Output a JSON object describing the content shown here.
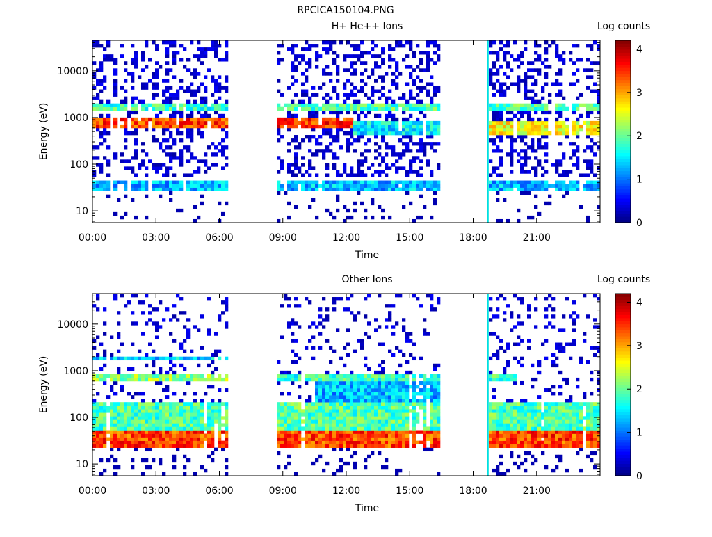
{
  "figure": {
    "title": "RPCICA150104.PNG"
  },
  "colormap": {
    "stops": [
      "#00007f",
      "#0000ff",
      "#007fff",
      "#00ffff",
      "#7fff7f",
      "#ffff00",
      "#ff7f00",
      "#ff0000",
      "#7f0000"
    ],
    "background": "#ffffff"
  },
  "chart_data": [
    {
      "type": "heatmap",
      "title": "H+ He++ Ions",
      "xlabel": "Time",
      "ylabel": "Energy (eV)",
      "x_range_hours": [
        0,
        24
      ],
      "x_ticks": [
        "00:00",
        "03:00",
        "06:00",
        "09:00",
        "12:00",
        "15:00",
        "18:00",
        "21:00"
      ],
      "y_scale": "log",
      "y_range": [
        5.6,
        45000
      ],
      "y_ticks": [
        "10",
        "100",
        "1000",
        "10000"
      ],
      "colorbar": {
        "label": "Log counts",
        "range": [
          0,
          4.2
        ],
        "ticks": [
          "0",
          "1",
          "2",
          "3",
          "4"
        ]
      },
      "data_intervals_hours": [
        [
          0.0,
          6.45
        ],
        [
          8.7,
          16.4
        ],
        [
          18.7,
          24.0
        ]
      ],
      "spike_hours": 18.7,
      "bands": [
        {
          "time_hours": [
            0.0,
            6.45
          ],
          "energy_eV": [
            650,
            950
          ],
          "value": 3.4
        },
        {
          "time_hours": [
            0.0,
            6.45
          ],
          "energy_eV": [
            1500,
            1900
          ],
          "value": 1.8
        },
        {
          "time_hours": [
            8.7,
            12.3
          ],
          "energy_eV": [
            650,
            950
          ],
          "value": 3.5
        },
        {
          "time_hours": [
            8.7,
            16.4
          ],
          "energy_eV": [
            1500,
            1900
          ],
          "value": 1.9
        },
        {
          "time_hours": [
            12.3,
            16.4
          ],
          "energy_eV": [
            400,
            800
          ],
          "value": 1.5
        },
        {
          "time_hours": [
            18.7,
            24.0
          ],
          "energy_eV": [
            450,
            850
          ],
          "value": 2.6
        },
        {
          "time_hours": [
            18.7,
            24.0
          ],
          "energy_eV": [
            1500,
            2100
          ],
          "value": 1.9
        },
        {
          "time_hours": [
            0.0,
            24.0
          ],
          "energy_eV": [
            28,
            45
          ],
          "value": 1.3
        }
      ],
      "background_noise": 0.8
    },
    {
      "type": "heatmap",
      "title": "Other Ions",
      "xlabel": "Time",
      "ylabel": "Energy (eV)",
      "x_range_hours": [
        0,
        24
      ],
      "x_ticks": [
        "00:00",
        "03:00",
        "06:00",
        "09:00",
        "12:00",
        "15:00",
        "18:00",
        "21:00"
      ],
      "y_scale": "log",
      "y_range": [
        5.6,
        45000
      ],
      "y_ticks": [
        "10",
        "100",
        "1000",
        "10000"
      ],
      "colorbar": {
        "label": "Log counts",
        "range": [
          0,
          4.2
        ],
        "ticks": [
          "0",
          "1",
          "2",
          "3",
          "4"
        ]
      },
      "data_intervals_hours": [
        [
          0.0,
          6.45
        ],
        [
          8.7,
          16.4
        ],
        [
          18.7,
          24.0
        ]
      ],
      "spike_hours": 18.7,
      "bands": [
        {
          "time_hours": [
            0.0,
            24.0
          ],
          "energy_eV": [
            24,
            55
          ],
          "value": 3.4
        },
        {
          "time_hours": [
            0.0,
            24.0
          ],
          "energy_eV": [
            55,
            200
          ],
          "value": 1.9
        },
        {
          "time_hours": [
            10.5,
            16.4
          ],
          "energy_eV": [
            200,
            600
          ],
          "value": 1.3
        },
        {
          "time_hours": [
            0.0,
            6.45
          ],
          "energy_eV": [
            650,
            900
          ],
          "value": 2.2
        },
        {
          "time_hours": [
            0.0,
            6.45
          ],
          "energy_eV": [
            1600,
            1900
          ],
          "value": 1.4
        },
        {
          "time_hours": [
            8.7,
            16.4
          ],
          "energy_eV": [
            650,
            900
          ],
          "value": 1.8
        },
        {
          "time_hours": [
            18.7,
            20.0
          ],
          "energy_eV": [
            650,
            900
          ],
          "value": 1.8
        }
      ],
      "background_noise": 0.35
    }
  ]
}
